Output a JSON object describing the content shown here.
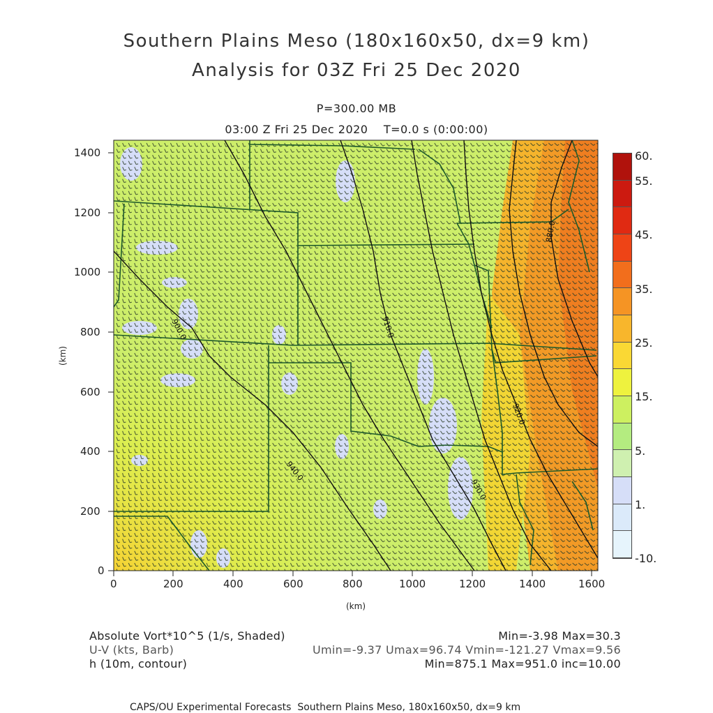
{
  "title_line1": "Southern Plains Meso (180x160x50, dx=9 km)",
  "title_line2": "Analysis for 03Z Fri 25 Dec 2020",
  "level_label": "P=300.00 MB",
  "time_label": "03:00 Z Fri 25 Dec 2020    T=0.0 s (0:00:00)",
  "x_axis": {
    "label": "(km)",
    "ticks": [
      "0",
      "200",
      "400",
      "600",
      "800",
      "1000",
      "1200",
      "1400",
      "1600"
    ]
  },
  "y_axis": {
    "label": "(km)",
    "ticks": [
      "0",
      "200",
      "400",
      "600",
      "800",
      "1000",
      "1200",
      "1400"
    ]
  },
  "contours": [
    "900.0",
    "910.0",
    "920.0",
    "930.0",
    "940.0",
    "880.0"
  ],
  "colorbar": {
    "labels": [
      "60.",
      "55.",
      "45.",
      "35.",
      "25.",
      "15.",
      "5.",
      "1.",
      "-10."
    ],
    "colors": [
      "#b0120c",
      "#cc1a10",
      "#e02a12",
      "#ee4416",
      "#f26e1c",
      "#f59424",
      "#f8b62c",
      "#fad834",
      "#eef23e",
      "#cdf060",
      "#b4ec80",
      "#cff0b0",
      "#d6def8",
      "#dbeafa",
      "#e6f4fc"
    ]
  },
  "fields": [
    {
      "name": "Absolute Vort*10^5 (1/s, Shaded)",
      "stats": "Min=-3.98 Max=30.3"
    },
    {
      "name": "U-V (kts, Barb)",
      "stats": "Umin=-9.37 Umax=96.74 Vmin=-121.27 Vmax=9.56"
    },
    {
      "name": "h (10m, contour)",
      "stats": "Min=875.1 Max=951.0 inc=10.00"
    }
  ],
  "footer": "CAPS/OU Experimental Forecasts  Southern Plains Meso, 180x160x50, dx=9 km"
}
